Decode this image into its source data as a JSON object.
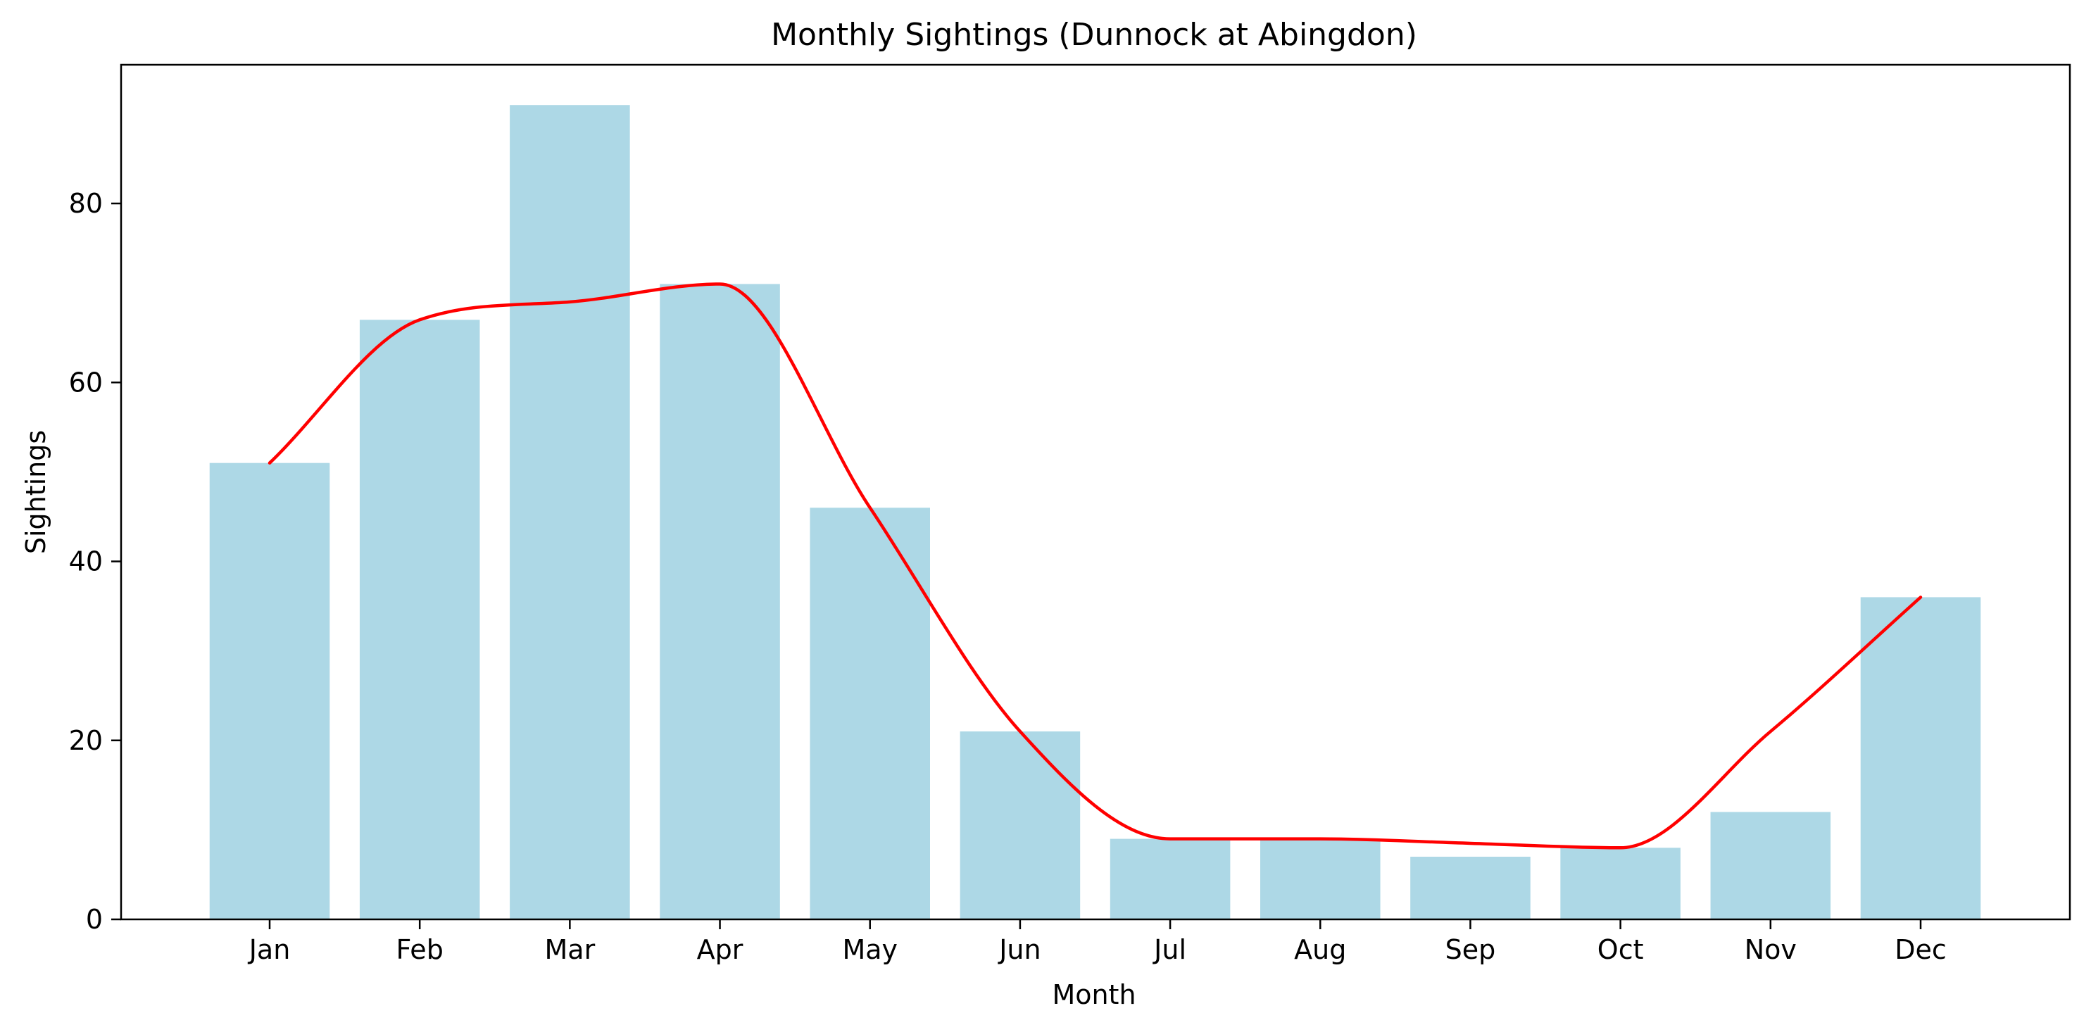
{
  "chart_data": {
    "type": "bar",
    "title": "Monthly Sightings (Dunnock at Abingdon)",
    "xlabel": "Month",
    "ylabel": "Sightings",
    "categories": [
      "Jan",
      "Feb",
      "Mar",
      "Apr",
      "May",
      "Jun",
      "Jul",
      "Aug",
      "Sep",
      "Oct",
      "Nov",
      "Dec"
    ],
    "values": [
      51,
      67,
      91,
      71,
      46,
      21,
      9,
      9,
      7,
      8,
      12,
      36
    ],
    "trend_line": {
      "type": "line",
      "smooth": true,
      "values": [
        51,
        67,
        69,
        71,
        46,
        21,
        9,
        9,
        8.5,
        8,
        21,
        36
      ]
    },
    "ylim": [
      0,
      95.5
    ],
    "yticks": [
      0,
      20,
      40,
      60,
      80
    ],
    "grid": false,
    "legend": "none",
    "colors": {
      "bar": "#add8e6",
      "line": "#ff0000",
      "axes": "#000000"
    }
  }
}
